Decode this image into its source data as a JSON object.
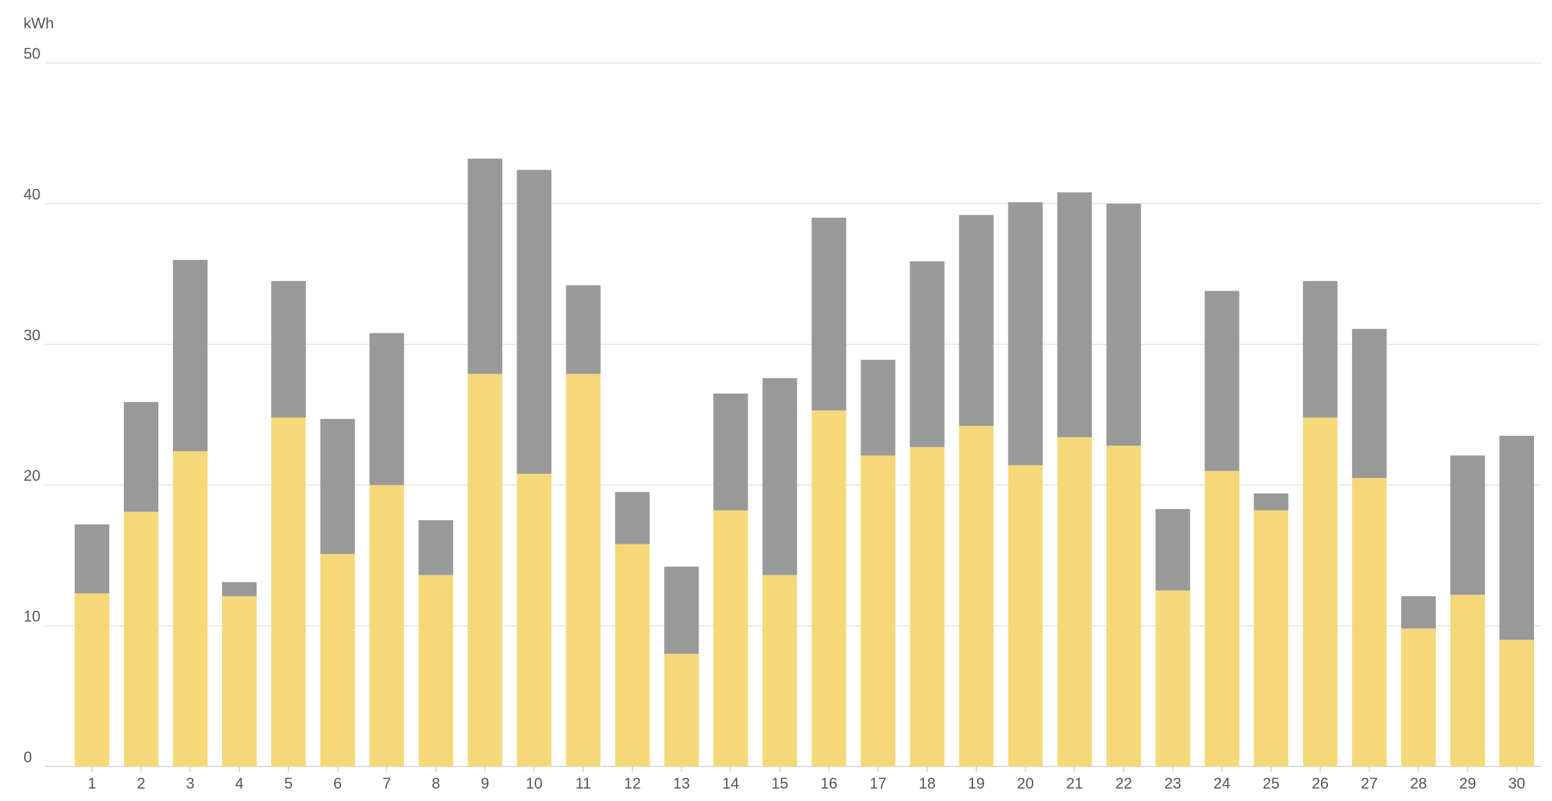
{
  "chart_data": {
    "type": "bar",
    "stacked": true,
    "unit_label": "kWh",
    "ylim": [
      0,
      50
    ],
    "y_ticks": [
      0,
      10,
      20,
      30,
      40,
      50
    ],
    "grid": true,
    "categories": [
      "1",
      "2",
      "3",
      "4",
      "5",
      "6",
      "7",
      "8",
      "9",
      "10",
      "11",
      "12",
      "13",
      "14",
      "15",
      "16",
      "17",
      "18",
      "19",
      "20",
      "21",
      "22",
      "23",
      "24",
      "25",
      "26",
      "27",
      "28",
      "29",
      "30"
    ],
    "series": [
      {
        "color": "#f5d978",
        "values": [
          12.3,
          18.1,
          22.4,
          12.1,
          24.8,
          15.1,
          20.0,
          13.6,
          27.9,
          20.8,
          27.9,
          15.8,
          8.0,
          18.2,
          13.6,
          25.3,
          22.1,
          22.7,
          24.2,
          21.4,
          23.4,
          22.8,
          12.5,
          21.0,
          18.2,
          24.8,
          20.5,
          9.8,
          12.2,
          9.0
        ]
      },
      {
        "color": "#999999",
        "values": [
          4.9,
          7.8,
          13.6,
          1.0,
          9.7,
          9.6,
          10.8,
          3.9,
          15.3,
          21.6,
          6.3,
          3.7,
          6.2,
          8.3,
          14.0,
          13.7,
          6.8,
          13.2,
          15.0,
          18.7,
          17.4,
          17.2,
          5.8,
          12.8,
          1.2,
          9.7,
          10.6,
          2.3,
          9.9,
          14.5
        ]
      }
    ]
  }
}
